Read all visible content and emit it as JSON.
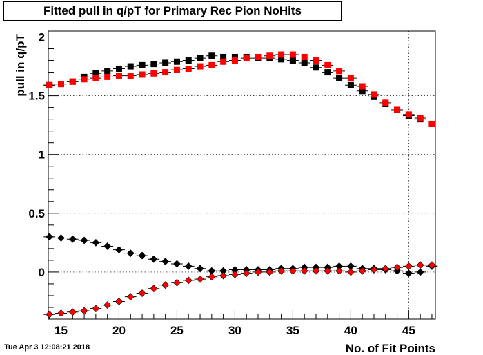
{
  "chart_data": {
    "type": "scatter",
    "title": "Fitted pull in q/pT for Primary Rec Pion NoHits",
    "xlabel": "No. of Fit Points",
    "ylabel": "pull in q/pT",
    "xlim": [
      13.9,
      47.3
    ],
    "ylim": [
      -0.4,
      2.05
    ],
    "x_ticks": [
      15,
      20,
      25,
      30,
      35,
      40,
      45
    ],
    "y_ticks": [
      0,
      0.5,
      1,
      1.5,
      2
    ],
    "x_tick_labels": [
      "15",
      "20",
      "25",
      "30",
      "35",
      "40",
      "45"
    ],
    "y_tick_labels": [
      "0",
      "0.5",
      "1",
      "1.5",
      "2"
    ],
    "grid": true,
    "x": [
      14,
      15,
      16,
      17,
      18,
      19,
      20,
      21,
      22,
      23,
      24,
      25,
      26,
      27,
      28,
      29,
      30,
      31,
      32,
      33,
      34,
      35,
      36,
      37,
      38,
      39,
      40,
      41,
      42,
      43,
      44,
      45,
      46,
      47
    ],
    "series": [
      {
        "color": "#000000",
        "marker": "square",
        "values": [
          1.59,
          1.6,
          1.62,
          1.66,
          1.69,
          1.71,
          1.73,
          1.75,
          1.76,
          1.77,
          1.78,
          1.79,
          1.8,
          1.82,
          1.84,
          1.83,
          1.83,
          1.83,
          1.82,
          1.82,
          1.81,
          1.8,
          1.78,
          1.74,
          1.7,
          1.65,
          1.59,
          1.54,
          1.49,
          1.43,
          1.38,
          1.33,
          1.3,
          1.26
        ]
      },
      {
        "color": "#ff0000",
        "marker": "square",
        "values": [
          1.59,
          1.6,
          1.62,
          1.64,
          1.65,
          1.66,
          1.67,
          1.67,
          1.68,
          1.69,
          1.7,
          1.72,
          1.73,
          1.75,
          1.76,
          1.79,
          1.8,
          1.82,
          1.83,
          1.84,
          1.85,
          1.85,
          1.83,
          1.8,
          1.76,
          1.71,
          1.65,
          1.58,
          1.51,
          1.44,
          1.38,
          1.34,
          1.31,
          1.26
        ]
      },
      {
        "color": "#000000",
        "marker": "diamond",
        "values": [
          0.3,
          0.29,
          0.28,
          0.27,
          0.25,
          0.22,
          0.19,
          0.16,
          0.14,
          0.11,
          0.09,
          0.07,
          0.05,
          0.03,
          0.01,
          0.01,
          0.02,
          0.02,
          0.02,
          0.02,
          0.03,
          0.03,
          0.04,
          0.04,
          0.04,
          0.05,
          0.05,
          0.03,
          0.03,
          0.02,
          0.01,
          -0.01,
          0.0,
          0.05
        ]
      },
      {
        "color": "#ff0000",
        "marker": "diamond",
        "values": [
          -0.36,
          -0.35,
          -0.34,
          -0.33,
          -0.31,
          -0.28,
          -0.25,
          -0.21,
          -0.18,
          -0.14,
          -0.11,
          -0.09,
          -0.07,
          -0.06,
          -0.04,
          -0.03,
          -0.02,
          -0.01,
          0.0,
          0.0,
          0.01,
          0.01,
          0.01,
          0.01,
          0.01,
          0.01,
          0.0,
          0.01,
          0.02,
          0.03,
          0.04,
          0.05,
          0.06,
          0.06
        ]
      }
    ]
  },
  "timestamp": "Tue Apr  3 12:08:21 2018"
}
